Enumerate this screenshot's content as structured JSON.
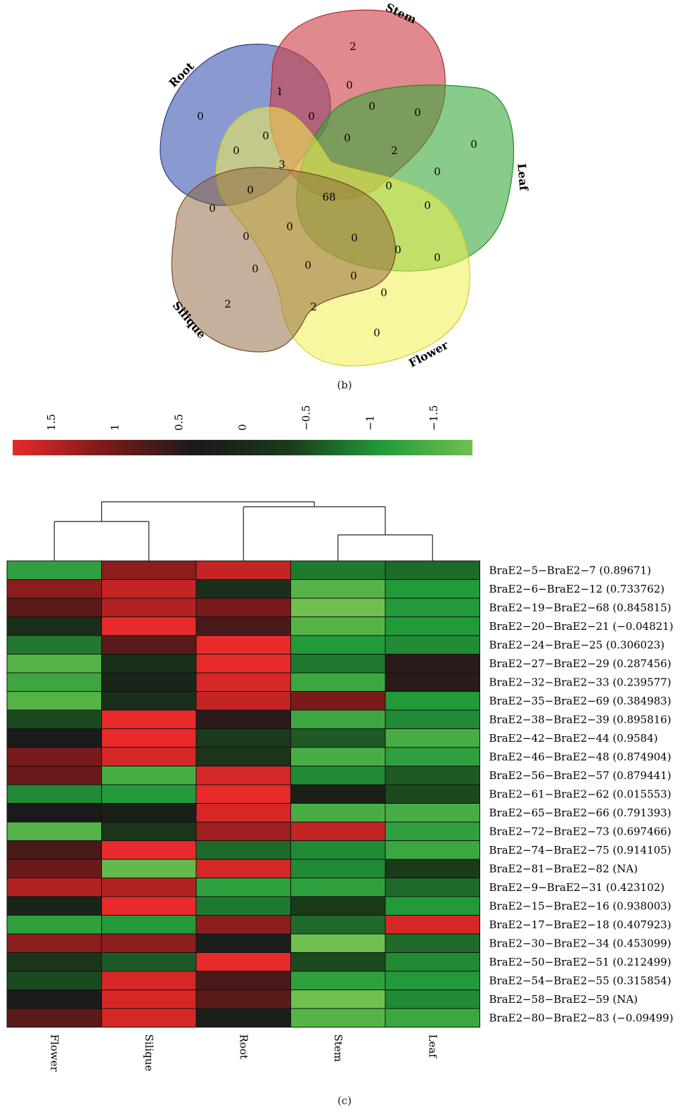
{
  "panel_b_label": "(b)",
  "panel_c_label": "(c)",
  "venn": {
    "sets": [
      {
        "name": "Root",
        "color": "#3c55b0"
      },
      {
        "name": "Stem",
        "color": "#cd4048"
      },
      {
        "name": "Leaf",
        "color": "#38a83c"
      },
      {
        "name": "Flower",
        "color": "#f2f050"
      },
      {
        "name": "Silique",
        "color": "#8b6238"
      }
    ],
    "region_counts": [
      "2",
      "1",
      "0",
      "0",
      "0",
      "0",
      "0",
      "0",
      "0",
      "0",
      "3",
      "0",
      "68",
      "2",
      "0",
      "0",
      "0",
      "0",
      "0",
      "0",
      "0",
      "0",
      "0",
      "0",
      "0",
      "0",
      "2",
      "2",
      "0",
      "0",
      "0"
    ]
  },
  "colorbar": {
    "ticks": [
      "1.5",
      "1",
      "0.5",
      "0",
      "−0.5",
      "−1",
      "−1.5"
    ],
    "colors": [
      "#e82a2a",
      "#7a1a1a",
      "#1a1a1a",
      "#1a3a1a",
      "#229a3a",
      "#6fc04f"
    ]
  },
  "chart_data": {
    "type": "heatmap",
    "columns": [
      "Flower",
      "Silique",
      "Root",
      "Stem",
      "Leaf"
    ],
    "rows": [
      "BraE2−5−BraE2−7 (0.89671)",
      "BraE2−6−BraE2−12 (0.733762)",
      "BraE2−19−BraE2−68 (0.845815)",
      "BraE2−20−BraE2−21 (−0.04821)",
      "BraE2−24−BraE−25 (0.306023)",
      "BraE2−27−BraE2−29 (0.287456)",
      "BraE2−32−BraE2−33 (0.239577)",
      "BraE2−35−BraE2−69 (0.384983)",
      "BraE2−38−BraE2−39 (0.895816)",
      "BraE2−42−BraE2−44 (0.9584)",
      "BraE2−46−BraE2−48 (0.874904)",
      "BraE2−56−BraE2−57 (0.879441)",
      "BraE2−61−BraE2−62 (0.015553)",
      "BraE2−65−BraE2−66 (0.791393)",
      "BraE2−72−BraE2−73 (0.697466)",
      "BraE2−74−BraE2−75 (0.914105)",
      "BraE2−81−BraE2−82 (NA)",
      "BraE2−9−BraE2−31 (0.423102)",
      "BraE2−15−BraE2−16 (0.938003)",
      "BraE2−17−BraE2−18 (0.407923)",
      "BraE2−30−BraE2−34 (0.453099)",
      "BraE2−50−BraE2−51 (0.212499)",
      "BraE2−54−BraE2−55 (0.315854)",
      "BraE2−58−BraE2−59 (NA)",
      "BraE2−80−BraE2−83 (−0.09499)"
    ],
    "values": [
      [
        -1.0,
        1.0,
        1.3,
        -0.7,
        -0.6
      ],
      [
        1.0,
        1.3,
        -0.1,
        -1.3,
        -0.9
      ],
      [
        0.7,
        1.2,
        0.9,
        -1.5,
        -0.9
      ],
      [
        -0.1,
        1.5,
        0.6,
        -1.3,
        -0.9
      ],
      [
        -0.7,
        0.7,
        1.5,
        -0.9,
        -0.8
      ],
      [
        -1.3,
        -0.1,
        1.5,
        -0.7,
        0.4
      ],
      [
        -1.1,
        0.1,
        1.4,
        -1.1,
        0.4
      ],
      [
        -1.3,
        -0.1,
        1.3,
        0.9,
        -0.9
      ],
      [
        -0.4,
        1.6,
        0.4,
        -1.1,
        -0.8
      ],
      [
        0.3,
        1.6,
        -0.3,
        -0.5,
        -1.2
      ],
      [
        0.9,
        1.4,
        -0.2,
        -1.2,
        -1.0
      ],
      [
        0.8,
        -1.2,
        1.4,
        -0.8,
        -0.5
      ],
      [
        -0.8,
        -0.9,
        1.7,
        0.2,
        -0.4
      ],
      [
        0.3,
        0.2,
        1.4,
        -1.2,
        -1.2
      ],
      [
        -1.3,
        -0.2,
        1.1,
        1.3,
        -1.0
      ],
      [
        0.6,
        1.5,
        -0.6,
        -0.8,
        -1.1
      ],
      [
        0.8,
        -1.4,
        1.4,
        -0.8,
        -0.3
      ],
      [
        1.2,
        1.2,
        -1.0,
        -1.0,
        -0.6
      ],
      [
        0.1,
        1.7,
        -0.7,
        -0.3,
        -0.9
      ],
      [
        -1.0,
        -0.9,
        1.0,
        -0.6,
        1.4
      ],
      [
        1.0,
        1.0,
        0.2,
        -1.5,
        -0.6
      ],
      [
        -0.2,
        -0.5,
        1.7,
        -0.4,
        -0.8
      ],
      [
        -0.4,
        1.4,
        0.6,
        -1.0,
        -0.9
      ],
      [
        0.3,
        1.4,
        0.7,
        -1.5,
        -0.8
      ],
      [
        0.7,
        1.4,
        0.2,
        -1.3,
        -1.1
      ]
    ],
    "scale_min": -1.5,
    "scale_max": 1.5,
    "dendrogram": "((Flower,Silique),(Root,(Stem,Leaf)))"
  }
}
